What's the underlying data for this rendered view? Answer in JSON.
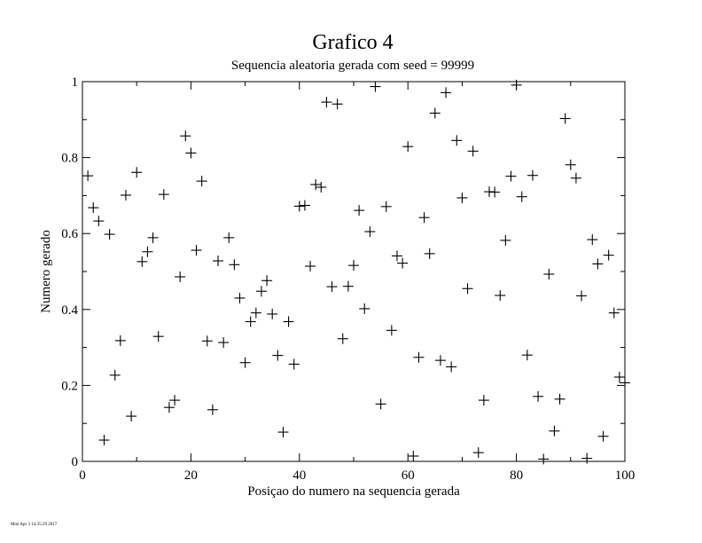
{
  "chart_data": {
    "type": "scatter",
    "title": "Grafico 4",
    "subtitle": "Sequencia aleatoria gerada com seed = 99999",
    "xlabel": "Posiçao do numero na sequencia gerada",
    "ylabel": "Numero gerado",
    "xlim": [
      0,
      100
    ],
    "ylim": [
      0,
      1
    ],
    "xticks": [
      0,
      20,
      40,
      60,
      80,
      100
    ],
    "xtick_labels": [
      "0",
      "20",
      "40",
      "60",
      "80",
      "100"
    ],
    "yticks": [
      0,
      0.2,
      0.4,
      0.6,
      0.8,
      1
    ],
    "ytick_labels": [
      "0",
      "0.2",
      "0.4",
      "0.6",
      "0.8",
      "1"
    ],
    "grid": false,
    "marker": "plus",
    "color": "#000000",
    "x": [
      1,
      2,
      3,
      4,
      5,
      6,
      7,
      8,
      9,
      10,
      11,
      12,
      13,
      14,
      15,
      16,
      17,
      18,
      19,
      20,
      21,
      22,
      23,
      24,
      25,
      26,
      27,
      28,
      29,
      30,
      31,
      32,
      33,
      34,
      35,
      36,
      37,
      38,
      39,
      40,
      41,
      42,
      43,
      44,
      45,
      46,
      47,
      48,
      49,
      50,
      51,
      52,
      53,
      54,
      55,
      56,
      57,
      58,
      59,
      60,
      61,
      62,
      63,
      64,
      65,
      66,
      67,
      68,
      69,
      70,
      71,
      72,
      73,
      74,
      75,
      76,
      77,
      78,
      79,
      80,
      81,
      82,
      83,
      84,
      85,
      86,
      87,
      88,
      89,
      90,
      91,
      92,
      93,
      94,
      95,
      96,
      97,
      98,
      99,
      100
    ],
    "y": [
      0.752,
      0.668,
      0.633,
      0.056,
      0.598,
      0.227,
      0.318,
      0.701,
      0.119,
      0.761,
      0.526,
      0.552,
      0.589,
      0.329,
      0.703,
      0.142,
      0.161,
      0.486,
      0.857,
      0.812,
      0.556,
      0.738,
      0.317,
      0.136,
      0.528,
      0.313,
      0.589,
      0.518,
      0.43,
      0.26,
      0.368,
      0.391,
      0.448,
      0.476,
      0.388,
      0.279,
      0.077,
      0.368,
      0.256,
      0.672,
      0.674,
      0.514,
      0.729,
      0.722,
      0.946,
      0.46,
      0.941,
      0.323,
      0.461,
      0.516,
      0.661,
      0.402,
      0.605,
      0.987,
      0.151,
      0.671,
      0.345,
      0.541,
      0.522,
      0.829,
      0.014,
      0.274,
      0.642,
      0.547,
      0.917,
      0.266,
      0.971,
      0.249,
      0.845,
      0.694,
      0.455,
      0.817,
      0.023,
      0.161,
      0.71,
      0.709,
      0.437,
      0.582,
      0.751,
      0.991,
      0.697,
      0.28,
      0.753,
      0.171,
      0.006,
      0.493,
      0.08,
      0.164,
      0.903,
      0.781,
      0.746,
      0.436,
      0.008,
      0.584,
      0.52,
      0.066,
      0.543,
      0.391,
      0.222,
      0.207
    ]
  },
  "timestamp": "Mon Apr 3 14:35:29 2017"
}
